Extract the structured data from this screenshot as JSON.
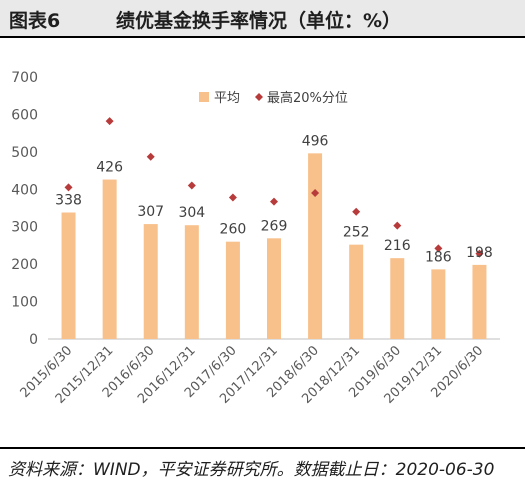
{
  "header": {
    "figure_label": "图表6",
    "title": "绩优基金换手率情况（单位：%）"
  },
  "footer": {
    "source": "资料来源：WIND，平安证券研究所。数据截止日：2020-06-30"
  },
  "colors": {
    "bar": "#f8c08a",
    "marker": "#b83b3b",
    "axis_text": "#595959",
    "label_text": "#404040"
  },
  "chart_data": {
    "type": "bar",
    "title": "",
    "xlabel": "",
    "ylabel": "",
    "ylim": [
      0,
      700
    ],
    "yticks": [
      0,
      100,
      200,
      300,
      400,
      500,
      600,
      700
    ],
    "grid": false,
    "legend_position": "top",
    "categories": [
      "2015/6/30",
      "2015/12/31",
      "2016/6/30",
      "2016/12/31",
      "2017/6/30",
      "2017/12/31",
      "2018/6/30",
      "2018/12/31",
      "2019/6/30",
      "2019/12/31",
      "2020/6/30"
    ],
    "series": [
      {
        "name": "平均",
        "kind": "bar",
        "values": [
          338,
          426,
          307,
          304,
          260,
          269,
          496,
          252,
          216,
          186,
          198
        ],
        "labels": [
          "338",
          "426",
          "307",
          "304",
          "260",
          "269",
          "496",
          "252",
          "216",
          "186",
          "198"
        ]
      },
      {
        "name": "最高20%分位",
        "kind": "marker",
        "values": [
          405,
          582,
          487,
          410,
          378,
          367,
          390,
          340,
          303,
          242,
          228
        ]
      }
    ]
  }
}
